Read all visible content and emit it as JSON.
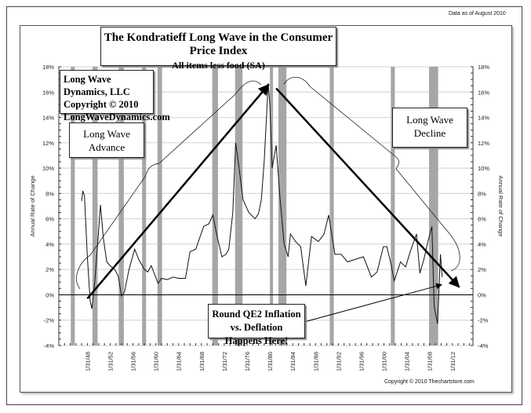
{
  "header": {
    "data_note": "Data as of August 2010"
  },
  "chart_data": {
    "type": "line",
    "title": "The Kondratieff Long Wave in the Consumer Price Index",
    "subtitle": "All items less food (SA)",
    "ylabel": "Annual Rate of Change",
    "ylabel_right": "Annual Rate of Change",
    "xlabel": "",
    "ylim": [
      -4,
      18
    ],
    "xlim": [
      1943,
      2015.6
    ],
    "grid": true,
    "y_ticks": [
      "-4%",
      "-2%",
      "0%",
      "2%",
      "4%",
      "6%",
      "8%",
      "10%",
      "12%",
      "14%",
      "16%",
      "18%"
    ],
    "y_tick_values": [
      -4,
      -2,
      0,
      2,
      4,
      6,
      8,
      10,
      12,
      14,
      16,
      18
    ],
    "x_ticks": [
      "1/31/48",
      "1/31/52",
      "1/31/56",
      "1/31/60",
      "1/31/64",
      "1/31/68",
      "1/31/72",
      "1/31/76",
      "1/31/80",
      "1/31/84",
      "1/31/88",
      "1/31/92",
      "1/31/96",
      "1/31/00",
      "1/31/04",
      "1/31/08",
      "1/31/12"
    ],
    "x_tick_values": [
      1948,
      1952,
      1956,
      1960,
      1964,
      1968,
      1972,
      1976,
      1980,
      1984,
      1988,
      1992,
      1996,
      2000,
      2004,
      2008,
      2012
    ],
    "series": [
      {
        "name": "CPI all items less food, annual rate of change (%)",
        "x": [
          1947.0,
          1947.2,
          1947.5,
          1948.0,
          1948.5,
          1948.8,
          1949.3,
          1949.8,
          1950.3,
          1950.8,
          1951.4,
          1952.0,
          1952.8,
          1953.4,
          1954.0,
          1954.5,
          1955.3,
          1956.3,
          1957.0,
          1958.0,
          1958.6,
          1959.2,
          1960.4,
          1961.0,
          1962.0,
          1963.0,
          1964.0,
          1965.2,
          1966.0,
          1967.0,
          1968.4,
          1969.3,
          1970.0,
          1970.8,
          1971.6,
          1972.3,
          1972.8,
          1973.5,
          1974.0,
          1974.6,
          1975.3,
          1976.3,
          1977.4,
          1978.0,
          1978.5,
          1979.0,
          1979.4,
          1979.7,
          1980.0,
          1980.4,
          1981.1,
          1981.8,
          1982.5,
          1983.2,
          1983.6,
          1984.5,
          1985.4,
          1986.3,
          1987.3,
          1988.5,
          1989.5,
          1990.3,
          1991.4,
          1992.5,
          1993.6,
          1995.0,
          1996.4,
          1997.8,
          1998.8,
          1999.9,
          2000.5,
          2001.2,
          2001.8,
          2002.9,
          2003.8,
          2004.6,
          2005.7,
          2006.3,
          2007.0,
          2007.7,
          2008.4,
          2008.8,
          2009.4,
          2009.9,
          2010.2
        ],
        "values": [
          7.4,
          8.2,
          7.8,
          3.0,
          -0.5,
          -1.1,
          1.0,
          4.0,
          7.1,
          4.5,
          2.6,
          2.3,
          2.0,
          1.5,
          -0.1,
          0.2,
          2.0,
          3.6,
          2.8,
          2.0,
          1.8,
          2.3,
          0.9,
          1.3,
          1.2,
          1.4,
          1.3,
          1.3,
          3.4,
          3.6,
          5.4,
          5.6,
          6.3,
          4.5,
          3.0,
          3.2,
          3.6,
          6.5,
          12.0,
          10.0,
          7.5,
          6.5,
          6.0,
          6.4,
          7.5,
          10.5,
          14.0,
          16.7,
          15.0,
          10.0,
          11.8,
          7.5,
          4.0,
          3.0,
          4.8,
          4.2,
          3.8,
          0.7,
          4.6,
          4.2,
          4.8,
          6.3,
          3.2,
          3.2,
          2.6,
          2.8,
          3.0,
          1.4,
          1.8,
          3.8,
          3.8,
          2.5,
          1.1,
          2.6,
          2.2,
          3.4,
          4.8,
          1.7,
          2.8,
          4.2,
          5.4,
          -0.9,
          -2.3,
          3.2,
          1.4
        ]
      }
    ],
    "recessions": [
      [
        1945.1,
        1945.8
      ],
      [
        1948.9,
        1949.8
      ],
      [
        1953.5,
        1954.4
      ],
      [
        1957.6,
        1958.3
      ],
      [
        1960.3,
        1961.1
      ],
      [
        1969.9,
        1970.9
      ],
      [
        1973.9,
        1975.2
      ],
      [
        1980.0,
        1980.5
      ],
      [
        1981.5,
        1982.9
      ],
      [
        1990.5,
        1991.2
      ],
      [
        2001.2,
        2001.9
      ],
      [
        2007.9,
        2009.5
      ]
    ],
    "annotations": {
      "advance_arrow": {
        "from": [
          1948.0,
          -0.3
        ],
        "to": [
          1979.8,
          16.6
        ]
      },
      "decline_arrow": {
        "from": [
          1981.1,
          16.3
        ],
        "to": [
          2013.2,
          0.6
        ]
      },
      "qe2_pointer": {
        "from": [
          2001.0,
          -1.5
        ],
        "to": [
          2010.1,
          0.8
        ]
      }
    }
  },
  "boxes": {
    "copyright": [
      "Long Wave Dynamics, LLC",
      "Copyright © 2010",
      "LongWaveDynamics.com"
    ],
    "advance": [
      "Long Wave",
      "Advance"
    ],
    "decline": [
      "Long Wave",
      "Decline"
    ],
    "qe2": [
      "Round QE2 Inflation vs. Deflation",
      "Happens Here!"
    ]
  },
  "footer": {
    "source": "Copyright © 2010 Thechartstore.com"
  },
  "colors": {
    "recession": "#a6a6a6",
    "grid": "#d9d9d9",
    "line": "#111111"
  }
}
